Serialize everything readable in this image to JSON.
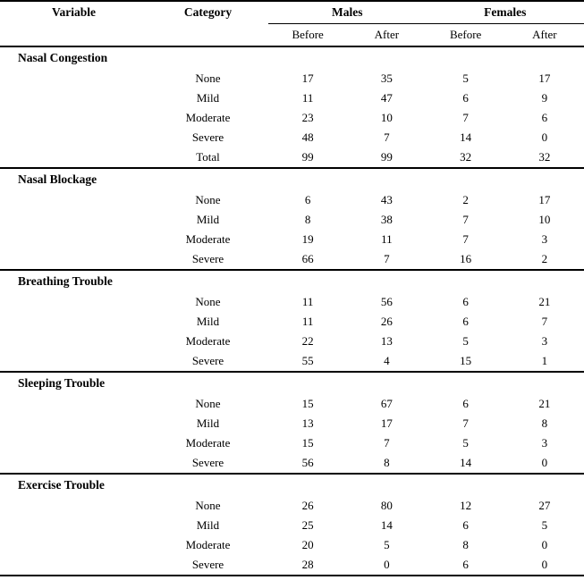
{
  "colors": {
    "text": "#000000",
    "background": "#ffffff",
    "rule": "#000000"
  },
  "table": {
    "headers": {
      "variable": "Variable",
      "category": "Category",
      "males": "Males",
      "females": "Females",
      "sub_columns": [
        "Before",
        "After",
        "Before",
        "After"
      ]
    },
    "sections": [
      {
        "variable": "Nasal Congestion",
        "rows": [
          {
            "category": "None",
            "values": [
              "17",
              "35",
              "5",
              "17"
            ]
          },
          {
            "category": "Mild",
            "values": [
              "11",
              "47",
              "6",
              "9"
            ]
          },
          {
            "category": "Moderate",
            "values": [
              "23",
              "10",
              "7",
              "6"
            ]
          },
          {
            "category": "Severe",
            "values": [
              "48",
              "7",
              "14",
              "0"
            ]
          },
          {
            "category": "Total",
            "values": [
              "99",
              "99",
              "32",
              "32"
            ]
          }
        ]
      },
      {
        "variable": "Nasal Blockage",
        "rows": [
          {
            "category": "None",
            "values": [
              "6",
              "43",
              "2",
              "17"
            ]
          },
          {
            "category": "Mild",
            "values": [
              "8",
              "38",
              "7",
              "10"
            ]
          },
          {
            "category": "Moderate",
            "values": [
              "19",
              "11",
              "7",
              "3"
            ]
          },
          {
            "category": "Severe",
            "values": [
              "66",
              "7",
              "16",
              "2"
            ]
          }
        ]
      },
      {
        "variable": "Breathing Trouble",
        "rows": [
          {
            "category": "None",
            "values": [
              "11",
              "56",
              "6",
              "21"
            ]
          },
          {
            "category": "Mild",
            "values": [
              "11",
              "26",
              "6",
              "7"
            ]
          },
          {
            "category": "Moderate",
            "values": [
              "22",
              "13",
              "5",
              "3"
            ]
          },
          {
            "category": "Severe",
            "values": [
              "55",
              "4",
              "15",
              "1"
            ]
          }
        ]
      },
      {
        "variable": "Sleeping Trouble",
        "rows": [
          {
            "category": "None",
            "values": [
              "15",
              "67",
              "6",
              "21"
            ]
          },
          {
            "category": "Mild",
            "values": [
              "13",
              "17",
              "7",
              "8"
            ]
          },
          {
            "category": "Moderate",
            "values": [
              "15",
              "7",
              "5",
              "3"
            ]
          },
          {
            "category": "Severe",
            "values": [
              "56",
              "8",
              "14",
              "0"
            ]
          }
        ]
      },
      {
        "variable": "Exercise Trouble",
        "rows": [
          {
            "category": "None",
            "values": [
              "26",
              "80",
              "12",
              "27"
            ]
          },
          {
            "category": "Mild",
            "values": [
              "25",
              "14",
              "6",
              "5"
            ]
          },
          {
            "category": "Moderate",
            "values": [
              "20",
              "5",
              "8",
              "0"
            ]
          },
          {
            "category": "Severe",
            "values": [
              "28",
              "0",
              "6",
              "0"
            ]
          }
        ]
      }
    ]
  }
}
